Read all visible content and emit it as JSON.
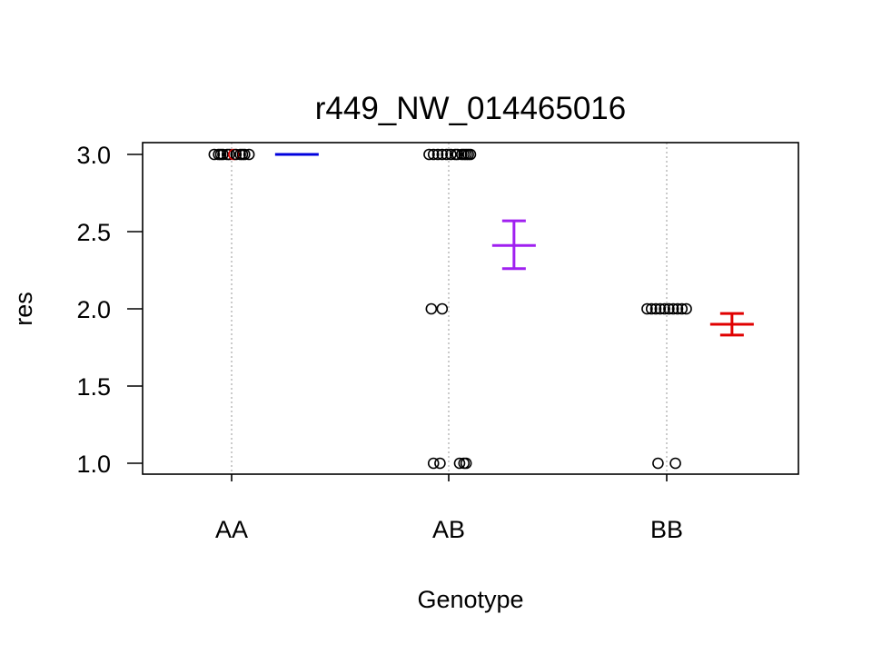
{
  "chart_data": {
    "type": "scatter",
    "title": "r449_NW_014465016",
    "xlabel": "Genotype",
    "ylabel": "res",
    "categories": [
      "AA",
      "AB",
      "BB"
    ],
    "ylim": [
      0.93,
      3.08
    ],
    "yticks": [
      "1.0",
      "1.5",
      "2.0",
      "2.5",
      "3.0"
    ],
    "grid": "vertical dotted lines at categories",
    "points": [
      {
        "category": "AA",
        "y": 3.0,
        "jitter": [
          -0.08,
          -0.06,
          -0.05,
          -0.04,
          -0.02,
          -0.01,
          0.01,
          0.02,
          0.04,
          0.05,
          0.06,
          0.08
        ],
        "colors": [
          "#000000",
          "#000000",
          "#000000",
          "#000000",
          "#000000",
          "#000000",
          "#e00000",
          "#000000",
          "#000000",
          "#000000",
          "#000000",
          "#000000"
        ]
      },
      {
        "category": "AB",
        "y": 3.0,
        "jitter": [
          -0.09,
          -0.07,
          -0.05,
          -0.03,
          -0.01,
          0.01,
          0.03,
          0.04,
          0.06,
          0.07,
          0.08,
          0.09,
          0.1
        ]
      },
      {
        "category": "AB",
        "y": 2.0,
        "jitter": [
          -0.08,
          -0.03
        ]
      },
      {
        "category": "AB",
        "y": 1.0,
        "jitter": [
          -0.07,
          -0.04,
          0.05,
          0.07,
          0.08
        ]
      },
      {
        "category": "BB",
        "y": 2.0,
        "jitter": [
          -0.09,
          -0.07,
          -0.05,
          -0.03,
          -0.01,
          0.01,
          0.03,
          0.05,
          0.07,
          0.09
        ]
      },
      {
        "category": "BB",
        "y": 1.0,
        "jitter": [
          -0.04,
          0.04
        ]
      }
    ],
    "summaries": [
      {
        "category": "AA",
        "mean": 3.0,
        "lower": 3.0,
        "upper": 3.0,
        "color": "#0000dd"
      },
      {
        "category": "AB",
        "mean": 2.41,
        "lower": 2.26,
        "upper": 2.57,
        "color": "#a020f0"
      },
      {
        "category": "BB",
        "mean": 1.9,
        "lower": 1.83,
        "upper": 1.97,
        "color": "#e00000"
      }
    ]
  }
}
